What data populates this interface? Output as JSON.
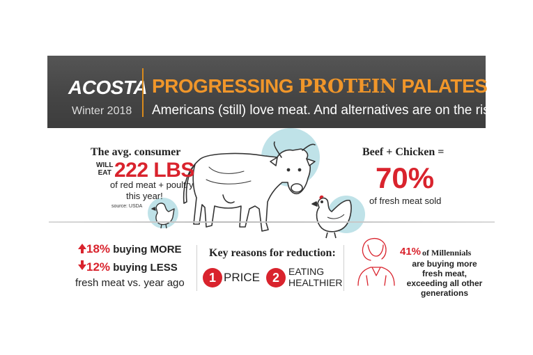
{
  "header": {
    "brand": "ACOSTA",
    "season": "Winter 2018",
    "headline_part1": "PROGRESSING ",
    "headline_part2": "PROTEIN",
    "headline_part3": " PALATES",
    "subheadline": "Americans (still) love meat. And alternatives are on the rise."
  },
  "consumption": {
    "title": "The avg. consumer",
    "will": "WILL",
    "eat": "EAT",
    "amount": "222 LBS",
    "line1": "of red meat + poultry",
    "line2": "this year!",
    "source": "source: USDA"
  },
  "beef_chicken": {
    "title": "Beef + Chicken =",
    "percent": "70%",
    "caption": "of fresh meat sold"
  },
  "buying": {
    "more_percent": "18%",
    "more_text": "buying MORE",
    "less_percent": "12%",
    "less_text": "buying LESS",
    "comparison": "fresh meat vs. year ago"
  },
  "reasons": {
    "title": "Key reasons for reduction:",
    "items": [
      {
        "number": "1",
        "label": "PRICE"
      },
      {
        "number": "2",
        "label_line1": "EATING",
        "label_line2": "HEALTHIER"
      }
    ]
  },
  "millennials": {
    "percent": "41%",
    "title": "of Millennials",
    "text_bold": "are buying more fresh meat, exceeding all other generations"
  },
  "colors": {
    "accent_red": "#d9232d",
    "accent_orange": "#f0962a",
    "banner_gray": "#4a4a4a",
    "circle_blue": "#bfe2e8"
  },
  "icons": [
    "cow-icon",
    "chicken-icon",
    "arrow-up-icon",
    "arrow-down-icon",
    "woman-icon"
  ]
}
